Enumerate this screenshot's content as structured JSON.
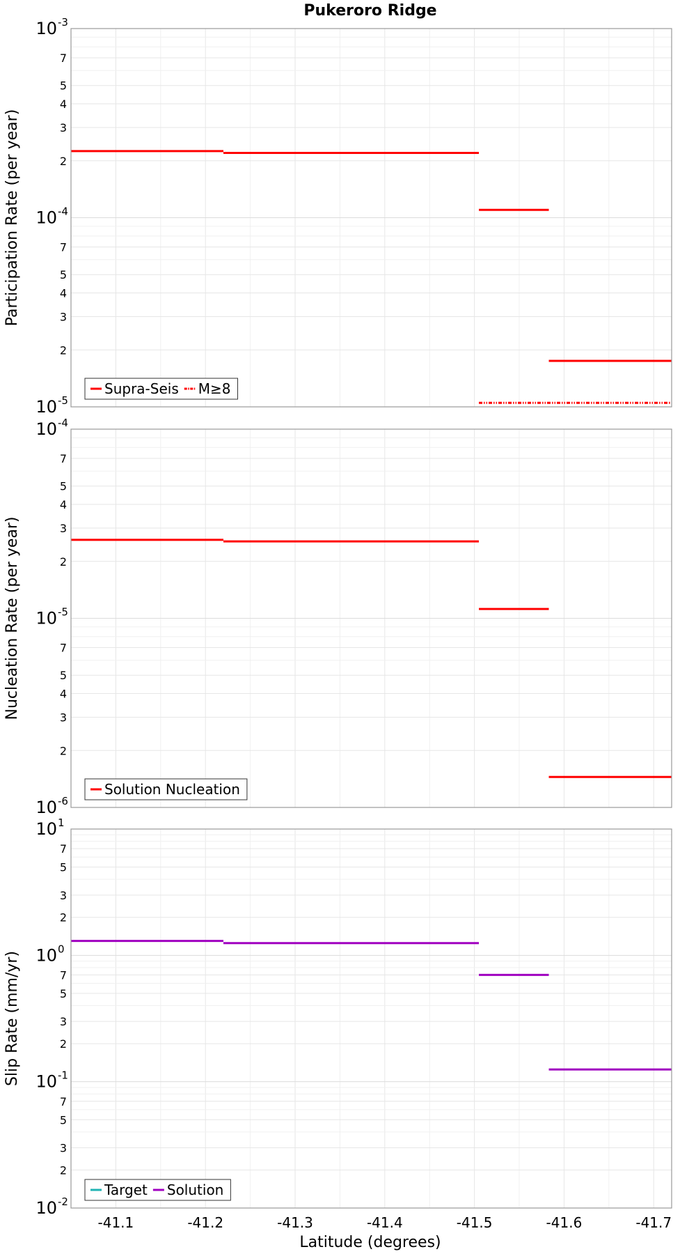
{
  "chart_data": {
    "type": "line",
    "title": "Pukeroro Ridge",
    "xlabel": "Latitude (degrees)",
    "xlim": [
      -41.05,
      -41.72
    ],
    "x_ticks": [
      -41.1,
      -41.2,
      -41.3,
      -41.4,
      -41.5,
      -41.6,
      -41.7
    ],
    "x_tick_labels": [
      "-41.1",
      "-41.2",
      "-41.3",
      "-41.4",
      "-41.5",
      "-41.6",
      "-41.7"
    ],
    "panels": [
      {
        "id": "participation",
        "ylabel": "Participation Rate (per year)",
        "yscale": "log",
        "ylim": [
          1e-05,
          0.001
        ],
        "major_ticks": [
          {
            "value": 1e-05,
            "base": "10",
            "exp": "-5"
          },
          {
            "value": 0.0001,
            "base": "10",
            "exp": "-4"
          },
          {
            "value": 0.001,
            "base": "10",
            "exp": "-3"
          }
        ],
        "minor_ticks": [
          {
            "value": 2e-05,
            "label": "2"
          },
          {
            "value": 3e-05,
            "label": "3"
          },
          {
            "value": 4e-05,
            "label": "4"
          },
          {
            "value": 5e-05,
            "label": "5"
          },
          {
            "value": 7e-05,
            "label": "7"
          },
          {
            "value": 0.0002,
            "label": "2"
          },
          {
            "value": 0.0003,
            "label": "3"
          },
          {
            "value": 0.0004,
            "label": "4"
          },
          {
            "value": 0.0005,
            "label": "5"
          },
          {
            "value": 0.0007,
            "label": "7"
          }
        ],
        "minor_grid": [
          6e-05,
          8e-05,
          9e-05,
          0.0006,
          0.0008,
          0.0009
        ],
        "legend": [
          {
            "label": "Supra-Seis",
            "color": "#ff0000",
            "dash": ""
          },
          {
            "label": "M≥8",
            "color": "#ff0000",
            "dash": "5,2,1.5,2,1.5,2"
          }
        ],
        "series": [
          {
            "name": "Supra-Seis",
            "color": "#ff0000",
            "dash": "",
            "segments": [
              {
                "x": [
                  -41.05,
                  -41.22
                ],
                "y": 0.000225
              },
              {
                "x": [
                  -41.22,
                  -41.505
                ],
                "y": 0.00022
              },
              {
                "x": [
                  -41.505,
                  -41.583
                ],
                "y": 0.00011
              },
              {
                "x": [
                  -41.583,
                  -41.72
                ],
                "y": 1.75e-05
              }
            ]
          },
          {
            "name": "M≥8",
            "color": "#ff0000",
            "dash": "5,2,1.5,2,1.5,2",
            "segments": [
              {
                "x": [
                  -41.505,
                  -41.72
                ],
                "y": 1.05e-05
              }
            ]
          }
        ]
      },
      {
        "id": "nucleation",
        "ylabel": "Nucleation Rate (per year)",
        "yscale": "log",
        "ylim": [
          1e-06,
          0.0001
        ],
        "major_ticks": [
          {
            "value": 1e-06,
            "base": "10",
            "exp": "-6"
          },
          {
            "value": 1e-05,
            "base": "10",
            "exp": "-5"
          },
          {
            "value": 0.0001,
            "base": "10",
            "exp": "-4"
          }
        ],
        "minor_ticks": [
          {
            "value": 2e-06,
            "label": "2"
          },
          {
            "value": 3e-06,
            "label": "3"
          },
          {
            "value": 4e-06,
            "label": "4"
          },
          {
            "value": 5e-06,
            "label": "5"
          },
          {
            "value": 7e-06,
            "label": "7"
          },
          {
            "value": 2e-05,
            "label": "2"
          },
          {
            "value": 3e-05,
            "label": "3"
          },
          {
            "value": 4e-05,
            "label": "4"
          },
          {
            "value": 5e-05,
            "label": "5"
          },
          {
            "value": 7e-05,
            "label": "7"
          }
        ],
        "minor_grid": [
          6e-06,
          8e-06,
          9e-06,
          6e-05,
          8e-05,
          9e-05
        ],
        "legend": [
          {
            "label": "Solution Nucleation",
            "color": "#ff0000",
            "dash": ""
          }
        ],
        "series": [
          {
            "name": "Solution Nucleation",
            "color": "#ff0000",
            "dash": "",
            "segments": [
              {
                "x": [
                  -41.05,
                  -41.22
                ],
                "y": 2.6e-05
              },
              {
                "x": [
                  -41.22,
                  -41.505
                ],
                "y": 2.55e-05
              },
              {
                "x": [
                  -41.505,
                  -41.583
                ],
                "y": 1.12e-05
              },
              {
                "x": [
                  -41.583,
                  -41.72
                ],
                "y": 1.45e-06
              }
            ]
          }
        ]
      },
      {
        "id": "slip",
        "ylabel": "Slip Rate (mm/yr)",
        "yscale": "log",
        "ylim": [
          0.01,
          10
        ],
        "major_ticks": [
          {
            "value": 0.01,
            "base": "10",
            "exp": "-2"
          },
          {
            "value": 0.1,
            "base": "10",
            "exp": "-1"
          },
          {
            "value": 1,
            "base": "10",
            "exp": "0"
          },
          {
            "value": 10,
            "base": "10",
            "exp": "1"
          }
        ],
        "minor_ticks": [
          {
            "value": 0.02,
            "label": "2"
          },
          {
            "value": 0.03,
            "label": "3"
          },
          {
            "value": 0.05,
            "label": "5"
          },
          {
            "value": 0.07,
            "label": "7"
          },
          {
            "value": 0.2,
            "label": "2"
          },
          {
            "value": 0.3,
            "label": "3"
          },
          {
            "value": 0.5,
            "label": "5"
          },
          {
            "value": 0.7,
            "label": "7"
          },
          {
            "value": 2,
            "label": "2"
          },
          {
            "value": 3,
            "label": "3"
          },
          {
            "value": 5,
            "label": "5"
          },
          {
            "value": 7,
            "label": "7"
          }
        ],
        "minor_grid": [
          0.04,
          0.06,
          0.08,
          0.09,
          0.4,
          0.6,
          0.8,
          0.9,
          4,
          6,
          8,
          9
        ],
        "legend": [
          {
            "label": "Target",
            "color": "#1fb3b3",
            "dash": ""
          },
          {
            "label": "Solution",
            "color": "#a000c0",
            "dash": ""
          }
        ],
        "series": [
          {
            "name": "Solution",
            "color": "#a000c0",
            "dash": "",
            "segments": [
              {
                "x": [
                  -41.05,
                  -41.22
                ],
                "y": 1.3
              },
              {
                "x": [
                  -41.22,
                  -41.505
                ],
                "y": 1.25
              },
              {
                "x": [
                  -41.505,
                  -41.583
                ],
                "y": 0.7
              },
              {
                "x": [
                  -41.583,
                  -41.72
                ],
                "y": 0.125
              }
            ]
          }
        ]
      }
    ]
  }
}
